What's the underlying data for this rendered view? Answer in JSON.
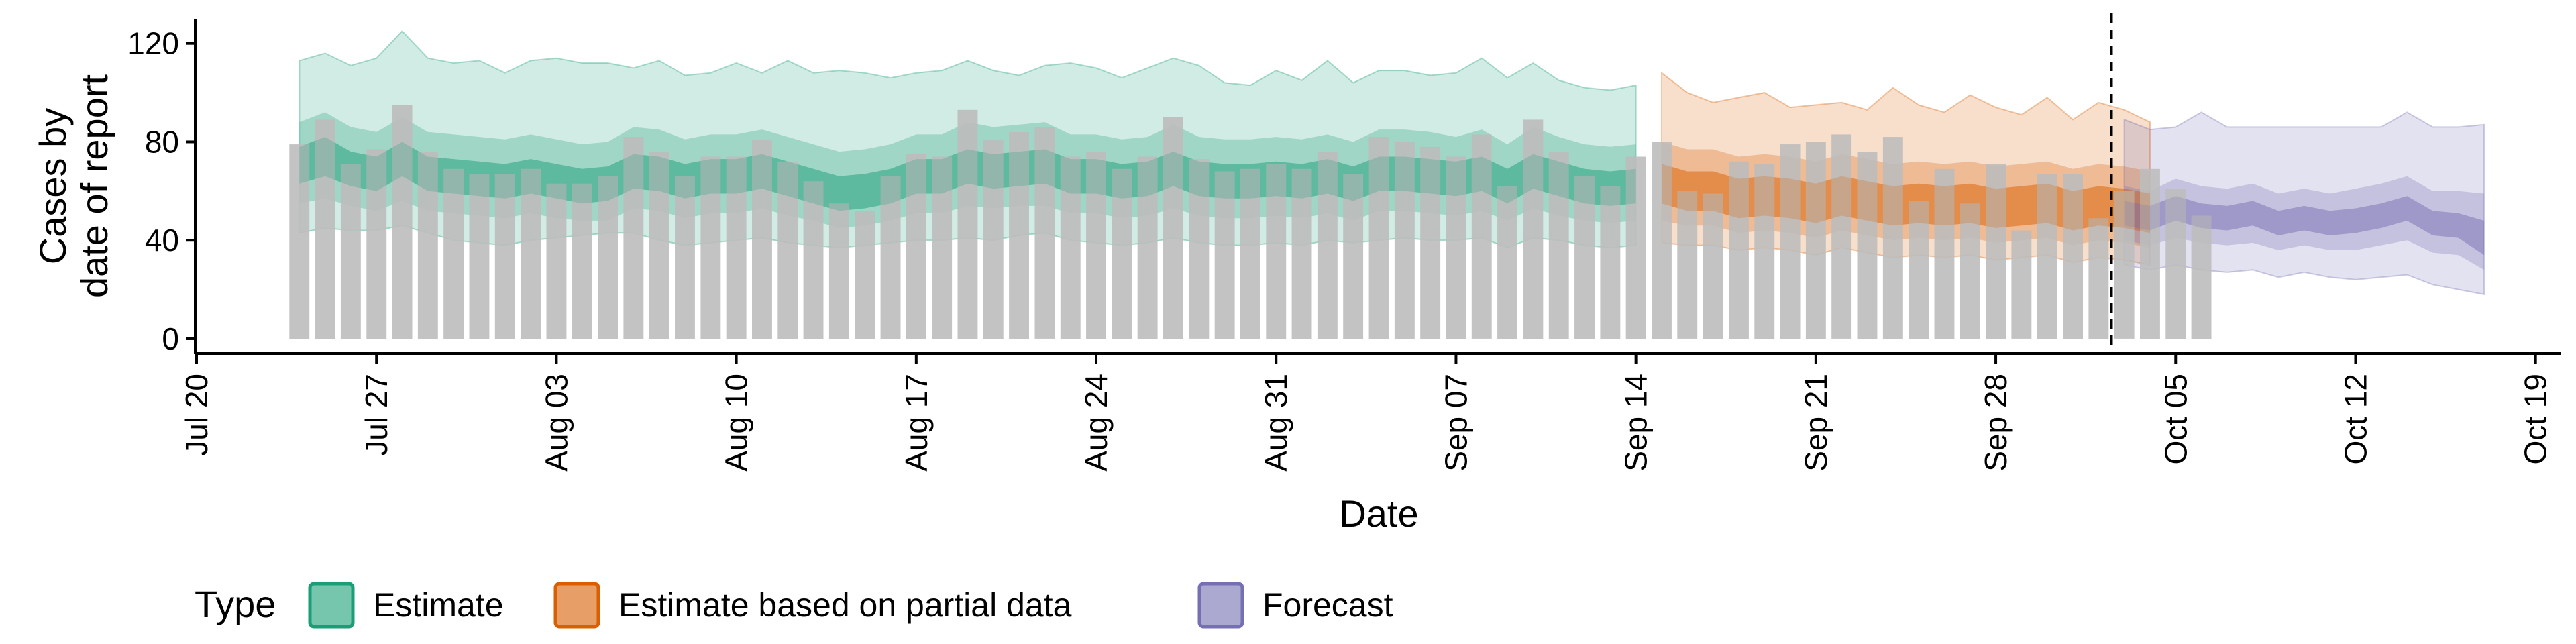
{
  "chart_data": {
    "type": "bar",
    "xlabel": "Date",
    "ylabel": [
      "Cases by",
      "date of report"
    ],
    "yticks": [
      0,
      40,
      80,
      120
    ],
    "ylim": [
      -6,
      130
    ],
    "xlim": [
      "2020-07-20",
      "2020-10-20"
    ],
    "xticks": [
      {
        "date": "2020-07-20",
        "label": "Jul 20"
      },
      {
        "date": "2020-07-27",
        "label": "Jul 27"
      },
      {
        "date": "2020-08-03",
        "label": "Aug 03"
      },
      {
        "date": "2020-08-10",
        "label": "Aug 10"
      },
      {
        "date": "2020-08-17",
        "label": "Aug 17"
      },
      {
        "date": "2020-08-24",
        "label": "Aug 24"
      },
      {
        "date": "2020-08-31",
        "label": "Aug 31"
      },
      {
        "date": "2020-09-07",
        "label": "Sep 07"
      },
      {
        "date": "2020-09-14",
        "label": "Sep 14"
      },
      {
        "date": "2020-09-21",
        "label": "Sep 21"
      },
      {
        "date": "2020-09-28",
        "label": "Sep 28"
      },
      {
        "date": "2020-10-05",
        "label": "Oct 05"
      },
      {
        "date": "2020-10-12",
        "label": "Oct 12"
      },
      {
        "date": "2020-10-19",
        "label": "Oct 19"
      }
    ],
    "bars": {
      "start": "2020-07-24",
      "color": "#bdbdbd",
      "values": [
        79,
        89,
        71,
        77,
        95,
        76,
        69,
        67,
        67,
        69,
        63,
        63,
        66,
        82,
        76,
        66,
        74,
        74,
        81,
        72,
        64,
        55,
        52,
        66,
        75,
        74,
        93,
        81,
        84,
        86,
        74,
        76,
        69,
        74,
        90,
        73,
        68,
        69,
        71,
        69,
        76,
        67,
        82,
        80,
        78,
        74,
        83,
        62,
        89,
        76,
        66,
        62,
        74,
        80,
        60,
        59,
        72,
        71,
        79,
        80,
        83,
        76,
        82,
        56,
        69,
        55,
        71,
        44,
        67,
        67,
        49,
        60,
        69,
        61,
        50
      ],
      "categories": [
        "Jul 24",
        "Jul 25",
        "Jul 26",
        "Jul 27",
        "Jul 28",
        "Jul 29",
        "Jul 30",
        "Jul 31",
        "Aug 01",
        "Aug 02",
        "Aug 03",
        "Aug 04",
        "Aug 05",
        "Aug 06",
        "Aug 07",
        "Aug 08",
        "Aug 09",
        "Aug 10",
        "Aug 11",
        "Aug 12",
        "Aug 13",
        "Aug 14",
        "Aug 15",
        "Aug 16",
        "Aug 17",
        "Aug 18",
        "Aug 19",
        "Aug 20",
        "Aug 21",
        "Aug 22",
        "Aug 23",
        "Aug 24",
        "Aug 25",
        "Aug 26",
        "Aug 27",
        "Aug 28",
        "Aug 29",
        "Aug 30",
        "Aug 31",
        "Sep 01",
        "Sep 02",
        "Sep 03",
        "Sep 04",
        "Sep 05",
        "Sep 06",
        "Sep 07",
        "Sep 08",
        "Sep 09",
        "Sep 10",
        "Sep 11",
        "Sep 12",
        "Sep 13",
        "Sep 14",
        "Sep 15",
        "Sep 16",
        "Sep 17",
        "Sep 18",
        "Sep 19",
        "Sep 20",
        "Sep 21",
        "Sep 22",
        "Sep 23",
        "Sep 24",
        "Sep 25",
        "Sep 26",
        "Sep 27",
        "Sep 28",
        "Sep 29",
        "Sep 30",
        "Oct 01",
        "Oct 02",
        "Oct 03",
        "Oct 04",
        "Oct 05",
        "Oct 06"
      ]
    },
    "bar_values_by_date": {
      "2020-07-24": 79,
      "2020-07-25": 89,
      "2020-07-26": 71,
      "2020-07-27": 77,
      "2020-07-28": 95,
      "2020-07-29": 76,
      "2020-07-30": 69,
      "2020-07-31": 67,
      "2020-08-01": 67,
      "2020-08-02": 69,
      "2020-08-03": 63,
      "2020-08-04": 63,
      "2020-08-05": 66,
      "2020-08-06": 82,
      "2020-08-07": 76,
      "2020-08-08": 66,
      "2020-08-09": 74,
      "2020-08-10": 74,
      "2020-08-11": 81,
      "2020-08-12": 72,
      "2020-08-13": 64,
      "2020-08-14": 55,
      "2020-08-15": 52,
      "2020-08-16": 66,
      "2020-08-17": 75,
      "2020-08-18": 74,
      "2020-08-19": 93,
      "2020-08-20": 81,
      "2020-08-21": 84,
      "2020-08-22": 86,
      "2020-08-23": 74,
      "2020-08-24": 76,
      "2020-08-25": 69,
      "2020-08-26": 74,
      "2020-08-27": 90,
      "2020-08-28": 73,
      "2020-08-29": 68,
      "2020-08-30": 69,
      "2020-08-31": 71,
      "2020-09-01": 69,
      "2020-09-02": 76,
      "2020-09-03": 67,
      "2020-09-04": 82,
      "2020-09-05": 80,
      "2020-09-06": 78,
      "2020-09-07": 74,
      "2020-09-08": 83,
      "2020-09-09": 62,
      "2020-09-10": 89,
      "2020-09-11": 76,
      "2020-09-12": 66,
      "2020-09-13": 62,
      "2020-09-14": 74,
      "2020-09-15": 80,
      "2020-09-16": 60,
      "2020-09-17": 59,
      "2020-09-18": 72,
      "2020-09-19": 71,
      "2020-09-20": 79,
      "2020-09-21": 80,
      "2020-09-22": 83,
      "2020-09-23": 76,
      "2020-09-24": 82,
      "2020-09-25": 56,
      "2020-09-26": 69,
      "2020-09-27": 55,
      "2020-09-28": 71,
      "2020-09-29": 44,
      "2020-09-30": 67,
      "2020-10-01": 67,
      "2020-10-02": 49
    },
    "vline": "2020-10-02",
    "series": [
      {
        "name": "Estimate",
        "color": "#1b9e77",
        "start": "2020-07-24",
        "median": [
          70,
          74,
          69,
          67,
          73,
          67,
          66,
          65,
          64,
          66,
          64,
          62,
          63,
          68,
          67,
          64,
          66,
          66,
          68,
          65,
          62,
          59,
          60,
          62,
          66,
          66,
          70,
          68,
          69,
          70,
          66,
          66,
          64,
          65,
          69,
          65,
          64,
          64,
          65,
          64,
          66,
          63,
          67,
          67,
          66,
          65,
          67,
          62,
          68,
          65,
          62,
          61,
          62
        ],
        "inner_lo": [
          63,
          66,
          62,
          60,
          66,
          60,
          59,
          58,
          57,
          59,
          57,
          55,
          56,
          61,
          60,
          57,
          59,
          59,
          61,
          58,
          55,
          52,
          53,
          55,
          59,
          59,
          63,
          61,
          62,
          63,
          59,
          59,
          57,
          58,
          62,
          58,
          57,
          57,
          58,
          57,
          59,
          56,
          60,
          60,
          59,
          58,
          60,
          55,
          61,
          58,
          55,
          54,
          55
        ],
        "inner_hi": [
          78,
          82,
          76,
          74,
          80,
          74,
          73,
          72,
          71,
          73,
          71,
          69,
          70,
          75,
          74,
          71,
          73,
          73,
          75,
          72,
          69,
          66,
          67,
          69,
          73,
          73,
          77,
          75,
          76,
          77,
          73,
          73,
          71,
          72,
          76,
          72,
          71,
          71,
          72,
          71,
          73,
          70,
          74,
          74,
          73,
          72,
          74,
          69,
          75,
          72,
          69,
          68,
          69
        ],
        "mid_lo": [
          55,
          57,
          54,
          52,
          56,
          52,
          51,
          50,
          49,
          51,
          49,
          48,
          48,
          53,
          52,
          49,
          51,
          51,
          53,
          50,
          48,
          45,
          46,
          48,
          51,
          51,
          54,
          53,
          54,
          54,
          51,
          51,
          49,
          50,
          53,
          50,
          49,
          49,
          50,
          49,
          51,
          48,
          52,
          52,
          51,
          50,
          52,
          48,
          53,
          50,
          48,
          47,
          48
        ],
        "mid_hi": [
          88,
          92,
          86,
          84,
          90,
          84,
          83,
          82,
          81,
          83,
          81,
          79,
          80,
          86,
          85,
          81,
          83,
          83,
          85,
          82,
          79,
          76,
          77,
          79,
          83,
          83,
          88,
          86,
          87,
          88,
          83,
          83,
          81,
          82,
          87,
          82,
          81,
          81,
          82,
          81,
          83,
          80,
          85,
          85,
          84,
          82,
          85,
          79,
          86,
          82,
          79,
          78,
          79
        ],
        "outer_lo": [
          43,
          45,
          44,
          44,
          46,
          43,
          40,
          39,
          38,
          40,
          41,
          42,
          43,
          43,
          40,
          38,
          39,
          40,
          41,
          39,
          38,
          37,
          38,
          39,
          40,
          40,
          41,
          40,
          42,
          43,
          40,
          39,
          38,
          39,
          41,
          39,
          38,
          38,
          39,
          38,
          40,
          39,
          40,
          41,
          40,
          40,
          41,
          37,
          41,
          40,
          38,
          37,
          38
        ],
        "outer_hi": [
          113,
          116,
          111,
          114,
          125,
          114,
          112,
          113,
          108,
          113,
          114,
          112,
          112,
          110,
          113,
          107,
          108,
          112,
          108,
          113,
          108,
          109,
          108,
          106,
          108,
          109,
          113,
          109,
          107,
          111,
          112,
          110,
          106,
          110,
          114,
          111,
          104,
          103,
          109,
          105,
          113,
          104,
          109,
          109,
          107,
          108,
          114,
          106,
          112,
          105,
          102,
          101,
          103
        ]
      },
      {
        "name": "Estimate based on partial data",
        "color": "#d95f02",
        "start": "2020-09-15",
        "median": [
          63,
          60,
          60,
          57,
          58,
          57,
          55,
          58,
          56,
          54,
          55,
          54,
          55,
          53,
          54,
          55,
          52,
          54,
          53,
          51
        ],
        "inner_lo": [
          55,
          52,
          52,
          49,
          50,
          49,
          47,
          50,
          48,
          46,
          47,
          46,
          47,
          45,
          46,
          47,
          44,
          46,
          45,
          43
        ],
        "inner_hi": [
          71,
          68,
          68,
          65,
          66,
          65,
          63,
          66,
          64,
          62,
          63,
          62,
          63,
          61,
          62,
          63,
          60,
          62,
          61,
          59
        ],
        "mid_lo": [
          48,
          46,
          46,
          43,
          44,
          43,
          41,
          44,
          42,
          40,
          41,
          40,
          41,
          39,
          40,
          41,
          38,
          40,
          39,
          37
        ],
        "mid_hi": [
          80,
          77,
          77,
          74,
          75,
          74,
          72,
          75,
          73,
          71,
          72,
          71,
          72,
          70,
          71,
          72,
          69,
          71,
          70,
          68
        ],
        "outer_lo": [
          39,
          38,
          38,
          36,
          37,
          36,
          34,
          37,
          35,
          33,
          34,
          33,
          34,
          32,
          33,
          34,
          31,
          33,
          32,
          30
        ],
        "outer_hi": [
          108,
          100,
          96,
          98,
          100,
          94,
          95,
          96,
          93,
          102,
          95,
          92,
          99,
          94,
          91,
          98,
          89,
          96,
          93,
          88
        ]
      },
      {
        "name": "Forecast",
        "color": "#7570b3",
        "start": "2020-10-03",
        "median": [
          51,
          49,
          53,
          50,
          49,
          51,
          47,
          49,
          47,
          48,
          50,
          53,
          47,
          46,
          41
        ],
        "inner_lo": [
          46,
          44,
          48,
          45,
          44,
          46,
          42,
          44,
          42,
          43,
          45,
          48,
          42,
          41,
          34
        ],
        "inner_hi": [
          56,
          54,
          58,
          55,
          54,
          56,
          52,
          54,
          52,
          53,
          55,
          58,
          52,
          51,
          48
        ],
        "mid_lo": [
          40,
          38,
          41,
          39,
          38,
          39,
          36,
          38,
          36,
          36,
          38,
          40,
          35,
          34,
          28
        ],
        "mid_hi": [
          62,
          60,
          65,
          62,
          61,
          63,
          59,
          61,
          59,
          61,
          63,
          66,
          60,
          60,
          59
        ],
        "outer_lo": [
          30,
          28,
          30,
          28,
          27,
          28,
          25,
          27,
          25,
          24,
          25,
          26,
          22,
          20,
          18
        ],
        "outer_hi": [
          89,
          85,
          86,
          92,
          86,
          86,
          86,
          86,
          86,
          86,
          86,
          92,
          86,
          86,
          87
        ]
      }
    ],
    "legend": {
      "title": "Type",
      "position": "bottom-left",
      "items": [
        {
          "label": "Estimate",
          "color": "#1b9e77"
        },
        {
          "label": "Estimate based on partial data",
          "color": "#d95f02"
        },
        {
          "label": "Forecast",
          "color": "#7570b3"
        }
      ]
    },
    "grid": false
  }
}
